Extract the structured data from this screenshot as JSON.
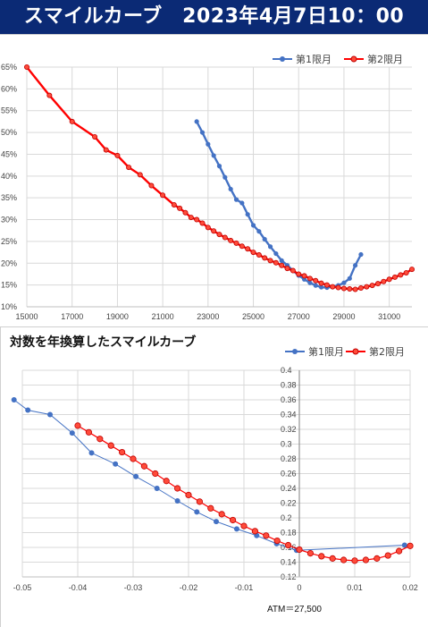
{
  "header": {
    "title": "スマイルカーブ　2023年4月7日10：00"
  },
  "chart_data": [
    {
      "type": "line",
      "title": "",
      "xlabel": "",
      "ylabel": "",
      "xlim": [
        15000,
        32000
      ],
      "ylim": [
        10,
        65
      ],
      "xticks": [
        15000,
        17000,
        19000,
        21000,
        23000,
        25000,
        27000,
        29000,
        31000
      ],
      "yticks": [
        10,
        15,
        20,
        25,
        30,
        35,
        40,
        45,
        50,
        55,
        60,
        65
      ],
      "x_tick_labels": [
        "15000",
        "17000",
        "19000",
        "21000",
        "23000",
        "25000",
        "27000",
        "29000",
        "31000"
      ],
      "y_tick_labels": [
        "10%",
        "15%",
        "20%",
        "25%",
        "30%",
        "35%",
        "40%",
        "45%",
        "50%",
        "55%",
        "60%",
        "65%"
      ],
      "grid": true,
      "legend": "top-right",
      "series": [
        {
          "name": "第1限月",
          "color": "#4472c4",
          "marker": "circle-filled",
          "x": [
            22500,
            22750,
            23000,
            23250,
            23500,
            23750,
            24000,
            24250,
            24500,
            24750,
            25000,
            25250,
            25500,
            25750,
            26000,
            26250,
            26500,
            26750,
            27000,
            27250,
            27500,
            27750,
            28000,
            28250,
            28500,
            28750,
            29000,
            29250,
            29500,
            29750
          ],
          "y": [
            52.5,
            50.0,
            47.3,
            44.7,
            42.3,
            39.7,
            37.0,
            34.6,
            33.8,
            31.2,
            28.7,
            27.3,
            25.5,
            23.8,
            22.2,
            20.6,
            19.5,
            18.3,
            17.2,
            16.3,
            15.5,
            14.9,
            14.5,
            14.4,
            14.6,
            14.9,
            15.5,
            16.5,
            19.5,
            22.0
          ]
        },
        {
          "name": "第2限月",
          "color": "#ff0000",
          "marker": "circle-hollow",
          "x": [
            15000,
            16000,
            17000,
            18000,
            18500,
            19000,
            19500,
            20000,
            20500,
            21000,
            21500,
            21750,
            22000,
            22250,
            22500,
            22750,
            23000,
            23250,
            23500,
            23750,
            24000,
            24250,
            24500,
            24750,
            25000,
            25250,
            25500,
            25750,
            26000,
            26250,
            26500,
            26750,
            27000,
            27250,
            27500,
            27750,
            28000,
            28250,
            28500,
            28750,
            29000,
            29250,
            29500,
            29750,
            30000,
            30250,
            30500,
            30750,
            31000,
            31250,
            31500,
            31750,
            32000
          ],
          "y": [
            65.0,
            58.5,
            52.5,
            49.0,
            46.0,
            44.7,
            42.0,
            40.3,
            37.8,
            35.6,
            33.4,
            32.6,
            31.6,
            30.5,
            30.0,
            29.2,
            28.2,
            27.4,
            26.6,
            25.9,
            25.2,
            24.6,
            23.9,
            23.3,
            22.5,
            21.9,
            21.2,
            20.6,
            20.1,
            19.5,
            18.8,
            18.3,
            17.5,
            17.1,
            16.5,
            16.0,
            15.4,
            15.0,
            14.6,
            14.4,
            14.2,
            14.1,
            14.0,
            14.3,
            14.6,
            14.9,
            15.3,
            15.8,
            16.3,
            16.8,
            17.3,
            17.8,
            18.6
          ]
        }
      ]
    },
    {
      "type": "line",
      "title": "対数を年換算したスマイルカーブ",
      "xlabel": "ATM＝27,500",
      "ylabel": "",
      "xlim": [
        -0.05,
        0.02
      ],
      "ylim": [
        0.12,
        0.4
      ],
      "xticks": [
        -0.05,
        -0.04,
        -0.03,
        -0.02,
        -0.01,
        0,
        0.01,
        0.02
      ],
      "yticks": [
        0.12,
        0.14,
        0.16,
        0.18,
        0.2,
        0.22,
        0.24,
        0.26,
        0.28,
        0.3,
        0.32,
        0.34,
        0.36,
        0.38,
        0.4
      ],
      "x_tick_labels": [
        "-0.05",
        "-0.04",
        "-0.03",
        "-0.02",
        "-0.01",
        "0",
        "0.01",
        "0.02"
      ],
      "y_tick_labels": [
        "0.12",
        "0.14",
        "0.16",
        "0.18",
        "0.2",
        "0.22",
        "0.24",
        "0.26",
        "0.28",
        "0.3",
        "0.32",
        "0.34",
        "0.36",
        "0.38",
        "0.4"
      ],
      "grid": true,
      "legend": "top-right",
      "series": [
        {
          "name": "第1限月",
          "color": "#4472c4",
          "marker": "circle-filled",
          "x": [
            -0.0515,
            -0.049,
            -0.045,
            -0.041,
            -0.0375,
            -0.0332,
            -0.0295,
            -0.0257,
            -0.022,
            -0.0185,
            -0.015,
            -0.0113,
            -0.0077,
            -0.0041,
            -0.0005,
            0.019
          ],
          "y": [
            0.36,
            0.346,
            0.34,
            0.315,
            0.288,
            0.273,
            0.256,
            0.24,
            0.223,
            0.208,
            0.195,
            0.185,
            0.176,
            0.165,
            0.156,
            0.163
          ]
        },
        {
          "name": "第2限月",
          "color": "#ff0000",
          "marker": "circle-hollow",
          "x": [
            -0.04,
            -0.038,
            -0.036,
            -0.034,
            -0.032,
            -0.03,
            -0.028,
            -0.026,
            -0.024,
            -0.022,
            -0.02,
            -0.018,
            -0.016,
            -0.014,
            -0.012,
            -0.01,
            -0.008,
            -0.006,
            -0.004,
            -0.002,
            0.0,
            0.002,
            0.004,
            0.006,
            0.008,
            0.01,
            0.012,
            0.014,
            0.016,
            0.018,
            0.02
          ],
          "y": [
            0.325,
            0.316,
            0.307,
            0.298,
            0.289,
            0.28,
            0.27,
            0.26,
            0.25,
            0.24,
            0.231,
            0.222,
            0.213,
            0.205,
            0.197,
            0.189,
            0.182,
            0.176,
            0.169,
            0.163,
            0.157,
            0.152,
            0.148,
            0.145,
            0.143,
            0.142,
            0.143,
            0.145,
            0.149,
            0.155,
            0.162
          ]
        }
      ]
    }
  ]
}
